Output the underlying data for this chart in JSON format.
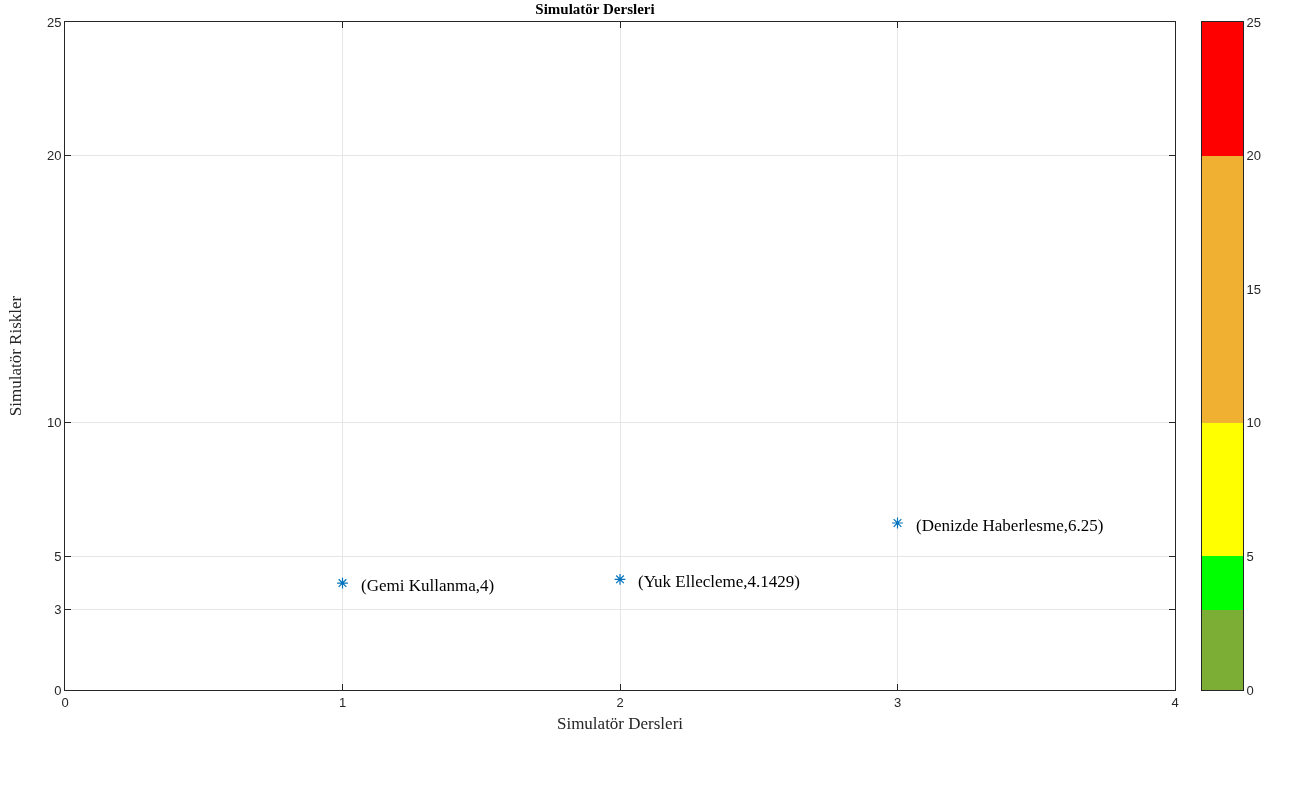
{
  "chart_data": [
    {
      "type": "scatter",
      "title": "Simulatör Dersleri",
      "xlabel": "Simulatör Dersleri",
      "ylabel": "Simulatör Riskler",
      "x": [
        1,
        2,
        3
      ],
      "values": [
        4,
        4.1429,
        6.25
      ],
      "color": "#0072bd",
      "marker": "cross",
      "xlim": [
        0,
        4
      ],
      "xticks": [
        0,
        1,
        2,
        3,
        4
      ],
      "ylim": [
        0,
        25
      ],
      "yticks": [
        0,
        3,
        5,
        10,
        20,
        25
      ],
      "grid": true,
      "legend": false,
      "annotations": [
        {
          "text": "(Gemi Kullanma,4)",
          "x": 1,
          "y": 4
        },
        {
          "text": "(Yuk Ellecleme,4.1429)",
          "x": 2,
          "y": 4.1429
        },
        {
          "text": "(Denizde Haberlesme,6.25)",
          "x": 3,
          "y": 6.25
        }
      ]
    },
    {
      "type": "bar",
      "stacked": true,
      "categories": [
        null
      ],
      "ylim": [
        0,
        25
      ],
      "yticks": [
        0,
        5,
        10,
        15,
        20,
        25
      ],
      "tick_labels": "y",
      "legend": false,
      "series": [
        {
          "color": "#7cad34",
          "values": [
            3
          ]
        },
        {
          "color": "#00ff00",
          "values": [
            2
          ]
        },
        {
          "color": "#ffff00",
          "values": [
            5
          ]
        },
        {
          "color": "#f0b032",
          "values": [
            10
          ]
        },
        {
          "color": "#ff0000",
          "values": [
            5
          ]
        }
      ]
    }
  ]
}
